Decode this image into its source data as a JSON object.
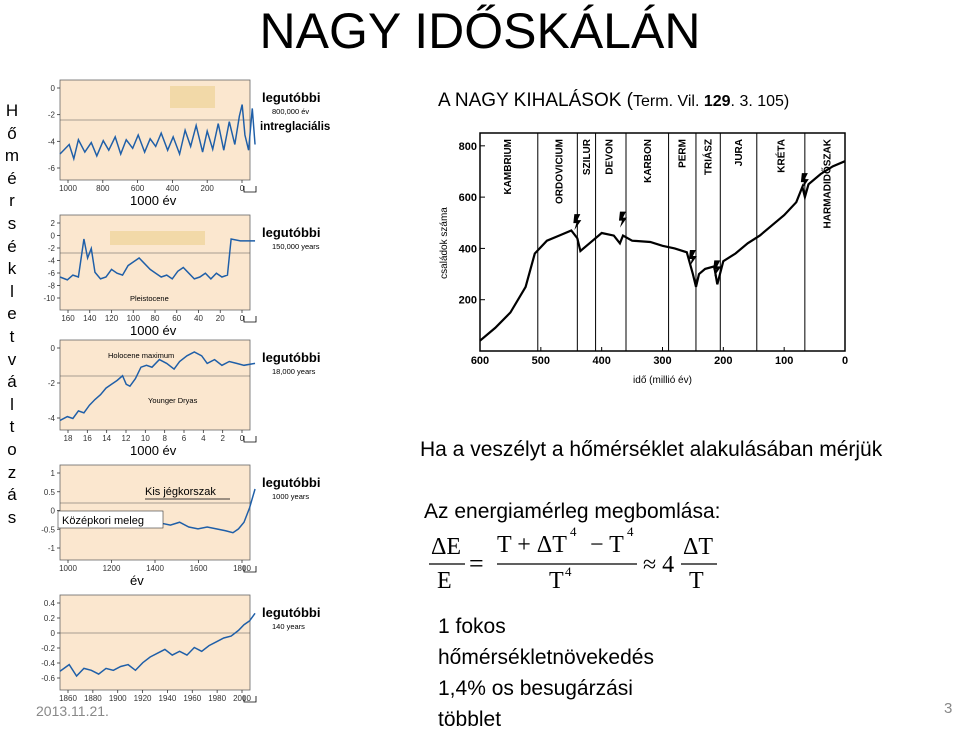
{
  "slide": {
    "title": "NAGY IDŐSKÁLÁN",
    "vertical_letters": [
      "H",
      "ő",
      "m",
      "é",
      "r",
      "s",
      "é",
      "k",
      "l",
      "e",
      "t",
      "v",
      "á",
      "l",
      "t",
      "o",
      "z",
      "á",
      "s"
    ],
    "date": "2013.11.21.",
    "page_number": "3"
  },
  "left_panels": [
    {
      "label": "legutóbbi",
      "sublabel": "800,000 év",
      "extra": "intreglaciális",
      "yticks": [
        "0",
        "-2",
        "-4",
        "-6"
      ],
      "xticks": [
        "1000",
        "800",
        "600",
        "400",
        "200",
        "0"
      ],
      "unit": "1000 év"
    },
    {
      "label": "legutóbbi",
      "sublabel": "150,000 years",
      "yticks": [
        "2",
        "0",
        "-2",
        "-4",
        "-6",
        "-8",
        "-10"
      ],
      "xticks": [
        "160",
        "140",
        "120",
        "100",
        "80",
        "60",
        "40",
        "20",
        "0"
      ],
      "unit": "1000 év",
      "annotation": "Pleistocene"
    },
    {
      "label": "legutóbbi",
      "sublabel": "18,000 years",
      "yticks": [
        "0",
        "-2",
        "-4"
      ],
      "xticks": [
        "18",
        "16",
        "14",
        "12",
        "10",
        "8",
        "6",
        "4",
        "2",
        "0"
      ],
      "unit": "1000 év",
      "annotations": [
        "Holocene maximum",
        "Younger Dryas"
      ]
    },
    {
      "label": "legutóbbi",
      "sublabel": "1000 years",
      "yticks": [
        "1",
        "0.5",
        "0",
        "-0.5",
        "-1"
      ],
      "xticks": [
        "1000",
        "1200",
        "1400",
        "1600",
        "1800"
      ],
      "unit": "év",
      "annotations": [
        "Kis jégkorszak",
        "Középkori meleg"
      ]
    },
    {
      "label": "legutóbbi",
      "sublabel": "140 years",
      "yticks": [
        "0.4",
        "0.2",
        "0",
        "-0.2",
        "-0.4",
        "-0.6"
      ],
      "xticks": [
        "1860",
        "1880",
        "1900",
        "1920",
        "1940",
        "1960",
        "1980",
        "2000"
      ],
      "unit": "év"
    }
  ],
  "extinctions": {
    "heading": "A NAGY KIHALÁSOK (",
    "ref_a": "Term. Vil. ",
    "ref_bold": "129",
    "ref_b": ". 3. 105)",
    "chart_data": {
      "type": "line",
      "ylabel": "családok száma",
      "xlabel": "idő (millió év)",
      "yticks": [
        "800",
        "600",
        "400",
        "200"
      ],
      "xticks": [
        "600",
        "500",
        "400",
        "300",
        "200",
        "100",
        "0"
      ],
      "periods": [
        "KAMBRIUM",
        "ORDOVICIUM",
        "SZILUR",
        "DEVON",
        "KARBON",
        "PERM",
        "TRIÁSZ",
        "JURA",
        "KRÉTA",
        "HARMADIDŐSZAK"
      ],
      "x": [
        600,
        575,
        550,
        525,
        510,
        490,
        470,
        450,
        440,
        435,
        420,
        400,
        380,
        370,
        365,
        350,
        320,
        300,
        280,
        260,
        250,
        245,
        240,
        230,
        215,
        210,
        200,
        180,
        160,
        140,
        120,
        100,
        80,
        70,
        66,
        60,
        40,
        20,
        0
      ],
      "y": [
        40,
        90,
        150,
        250,
        380,
        430,
        450,
        470,
        440,
        390,
        420,
        460,
        450,
        420,
        450,
        430,
        425,
        410,
        400,
        385,
        300,
        250,
        300,
        320,
        330,
        260,
        350,
        380,
        420,
        450,
        490,
        530,
        580,
        640,
        600,
        650,
        690,
        720,
        740
      ]
    }
  },
  "right_text": {
    "question": "Ha a veszélyt a hőmérséklet alakulásában mérjük",
    "energy": "Az energiamérleg megbomlása:",
    "formula": {
      "lhs_num": "ΔE",
      "lhs_den": "E",
      "eq": "=",
      "mid_num": "T + ΔT",
      "exp1": "4",
      "minus": "− T",
      "exp2": "4",
      "mid_den": "T",
      "exp3": "4",
      "approx": "≈ 4",
      "rhs_num": "ΔT",
      "rhs_den": "T"
    },
    "conclusion": [
      "1 fokos",
      "hőmérsékletnövekedés",
      "1,4% os besugárzási",
      "többlet"
    ]
  },
  "colors": {
    "panel_bg": "#fbe7cf",
    "curve": "#1f5fa8",
    "highlight": "#f2d9a8"
  }
}
